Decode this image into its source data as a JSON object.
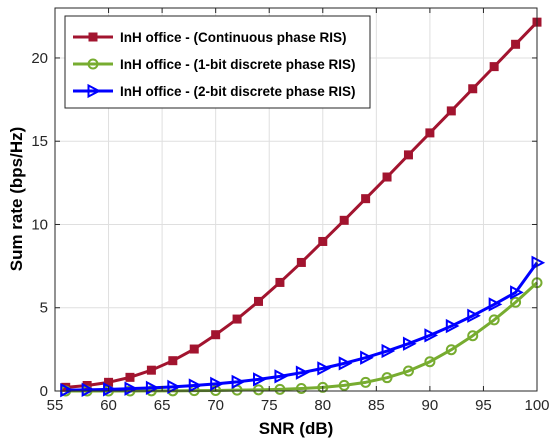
{
  "chart_data": {
    "type": "line",
    "title": "",
    "xlabel": "SNR (dB)",
    "ylabel": "Sum rate (bps/Hz)",
    "xlim": [
      55,
      100
    ],
    "ylim": [
      0,
      23
    ],
    "xticks": [
      55,
      60,
      65,
      70,
      75,
      80,
      85,
      90,
      95,
      100
    ],
    "yticks": [
      0,
      5,
      10,
      15,
      20
    ],
    "grid": true,
    "legend_position": "top-left",
    "x": [
      56,
      58,
      60,
      62,
      64,
      66,
      68,
      70,
      72,
      74,
      76,
      78,
      80,
      82,
      84,
      86,
      88,
      90,
      92,
      94,
      96,
      98,
      100
    ],
    "series": [
      {
        "name": "InH office - (Continuous phase RIS)",
        "color": "#a2142f",
        "marker": "square",
        "values": [
          0.22,
          0.33,
          0.52,
          0.82,
          1.25,
          1.82,
          2.52,
          3.38,
          4.32,
          5.38,
          6.52,
          7.72,
          8.98,
          10.25,
          11.55,
          12.85,
          14.18,
          15.5,
          16.82,
          18.15,
          19.48,
          20.82,
          22.15
        ]
      },
      {
        "name": "InH office - (1-bit discrete phase RIS)",
        "color": "#77ac30",
        "marker": "circle",
        "values": [
          0.0,
          0.0,
          0.0,
          0.0,
          0.01,
          0.01,
          0.02,
          0.03,
          0.05,
          0.07,
          0.1,
          0.15,
          0.22,
          0.34,
          0.52,
          0.8,
          1.2,
          1.76,
          2.48,
          3.32,
          4.27,
          5.33,
          6.5
        ]
      },
      {
        "name": "InH office - (2-bit discrete phase RIS)",
        "color": "#0000ff",
        "marker": "triangle-right",
        "values": [
          0.05,
          0.07,
          0.1,
          0.14,
          0.19,
          0.25,
          0.33,
          0.43,
          0.55,
          0.7,
          0.88,
          1.1,
          1.36,
          1.66,
          2.0,
          2.4,
          2.84,
          3.34,
          3.9,
          4.52,
          5.2,
          5.92,
          7.7
        ]
      }
    ]
  }
}
